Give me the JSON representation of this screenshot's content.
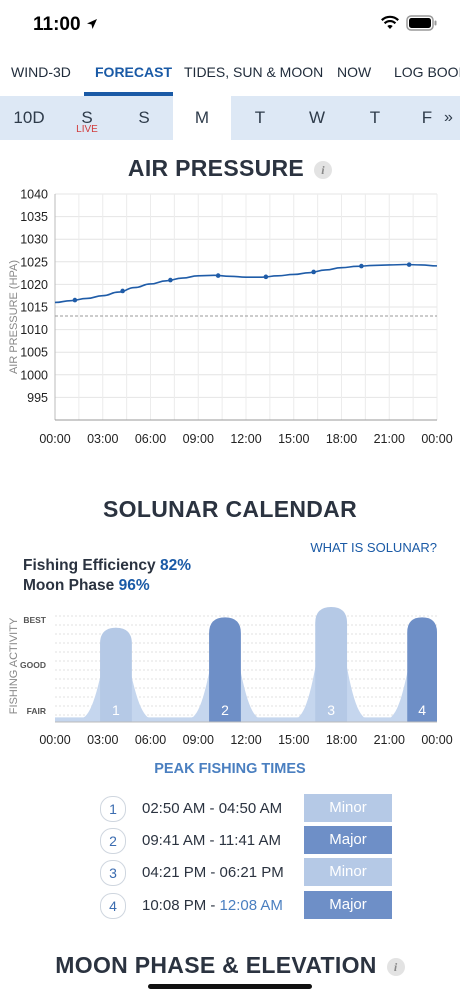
{
  "status_bar": {
    "time": "11:00"
  },
  "tabs": [
    {
      "label": "WIND-3D"
    },
    {
      "label": "FORECAST"
    },
    {
      "label": "TIDES, SUN & MOON"
    },
    {
      "label": "NOW"
    },
    {
      "label": "LOG BOOK"
    }
  ],
  "days": [
    {
      "label": "10D"
    },
    {
      "label": "S"
    },
    {
      "label": "S"
    },
    {
      "label": "M"
    },
    {
      "label": "T"
    },
    {
      "label": "W"
    },
    {
      "label": "T"
    },
    {
      "label": "F"
    }
  ],
  "live_label": "LIVE",
  "more_label": "»",
  "air_pressure": {
    "title": "AIR PRESSURE",
    "info": "i"
  },
  "solunar": {
    "title": "SOLUNAR CALENDAR",
    "link": "WHAT IS SOLUNAR?",
    "efficiency_label": "Fishing Efficiency",
    "efficiency_value": "82%",
    "moon_label": "Moon Phase",
    "moon_value": "96%"
  },
  "peak": {
    "title": "PEAK FISHING TIMES",
    "rows": [
      {
        "num": "1",
        "time": "02:50 AM - 04:50 AM",
        "time_next": "",
        "type": "Minor"
      },
      {
        "num": "2",
        "time": "09:41 AM - 11:41 AM",
        "time_next": "",
        "type": "Major"
      },
      {
        "num": "3",
        "time": "04:21 PM - 06:21 PM",
        "time_next": "",
        "type": "Minor"
      },
      {
        "num": "4",
        "time": "10:08 PM - ",
        "time_next": "12:08 AM",
        "type": "Major"
      }
    ]
  },
  "moon_phase": {
    "title": "MOON PHASE & ELEVATION",
    "info": "i"
  },
  "chart_data": [
    {
      "type": "line",
      "ylabel": "AIR PRESSURE (HPA)",
      "ylim": [
        990,
        1040
      ],
      "yticks": [
        "1040",
        "1035",
        "1030",
        "1025",
        "1020",
        "1015",
        "1010",
        "1005",
        "1000",
        "995"
      ],
      "xticks": [
        "00:00",
        "03:00",
        "06:00",
        "09:00",
        "12:00",
        "15:00",
        "18:00",
        "21:00",
        "00:00"
      ],
      "x_hours": [
        0,
        1,
        2,
        3,
        4,
        5,
        6,
        7,
        8,
        9,
        10,
        11,
        12,
        13,
        14,
        15,
        16,
        17,
        18,
        19,
        20,
        21,
        22,
        23,
        24
      ],
      "values": [
        1016.0,
        1016.4,
        1016.9,
        1017.5,
        1018.3,
        1019.3,
        1020.1,
        1020.8,
        1021.4,
        1021.9,
        1022.0,
        1021.8,
        1021.6,
        1021.6,
        1021.9,
        1022.2,
        1022.6,
        1023.2,
        1023.7,
        1024.0,
        1024.2,
        1024.3,
        1024.4,
        1024.3,
        1024.1
      ],
      "marker_hours": [
        1.25,
        4.25,
        7.25,
        10.25,
        13.25,
        16.25,
        19.25,
        22.25
      ],
      "reference_line": 1013,
      "grid": true
    },
    {
      "type": "area",
      "ylabel": "FISHING ACTIVITY",
      "ylevels": [
        "BEST",
        "GOOD",
        "FAIR"
      ],
      "xticks": [
        "00:00",
        "03:00",
        "06:00",
        "09:00",
        "12:00",
        "15:00",
        "18:00",
        "21:00",
        "00:00"
      ],
      "peaks": [
        {
          "label": "1",
          "start": 2.83,
          "end": 4.83,
          "level": 0.82,
          "kind": "Minor"
        },
        {
          "label": "2",
          "start": 9.68,
          "end": 11.68,
          "level": 0.91,
          "kind": "Major"
        },
        {
          "label": "3",
          "start": 16.35,
          "end": 18.35,
          "level": 1.0,
          "kind": "Minor"
        },
        {
          "label": "4",
          "start": 22.13,
          "end": 24.13,
          "level": 0.91,
          "kind": "Major"
        }
      ]
    }
  ],
  "colors": {
    "accent": "#1a5aa6",
    "line": "#1f5ca8",
    "minor": "#b5c9e6",
    "major": "#6e8fc7",
    "base_area": "#c5d6ee",
    "live": "#d23b3b"
  }
}
